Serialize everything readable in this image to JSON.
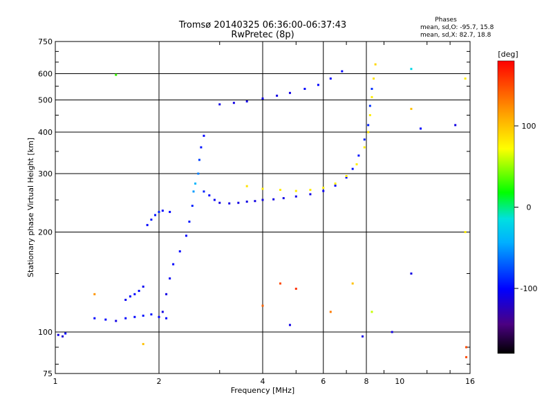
{
  "chart_data": {
    "type": "scatter",
    "title_lines": [
      "Tromsø 20140325 06:36:00-06:37:43",
      "RwPretec (8p)"
    ],
    "stats": {
      "heading": "Phases",
      "line_o": "mean, sd,O: -95.7, 15.8",
      "line_x": "mean, sd,X:  82.7, 18.8"
    },
    "xlabel": "Frequency [MHz]",
    "ylabel": "Stationary phase Virtual Height [km]",
    "x_scale": "log",
    "y_scale": "log",
    "xlim": [
      1,
      16
    ],
    "ylim": [
      75,
      750
    ],
    "x_ticks": [
      1,
      2,
      4,
      6,
      8,
      10,
      16
    ],
    "x_tick_labels": [
      "1",
      "2",
      "4",
      "6",
      "8",
      "10",
      "16"
    ],
    "y_ticks": [
      75,
      100,
      200,
      300,
      400,
      500,
      600,
      750
    ],
    "y_tick_labels": [
      "75",
      "100",
      "200",
      "300",
      "400",
      "500",
      "600",
      "750"
    ],
    "grid": true,
    "grid_x": [
      2,
      4,
      6,
      8
    ],
    "grid_y": [
      100,
      200,
      300,
      400,
      500,
      600
    ],
    "colorbar": {
      "label": "[deg]",
      "range": [
        -180,
        180
      ],
      "ticks": [
        100,
        0,
        -100
      ],
      "tick_labels": [
        "100",
        "0",
        "-100"
      ]
    },
    "series": [
      {
        "points": [
          [
            1.02,
            98,
            -110
          ],
          [
            1.05,
            97,
            -115
          ],
          [
            1.07,
            99,
            -100
          ]
        ]
      },
      {
        "points": [
          [
            1.3,
            110,
            -100
          ],
          [
            1.4,
            109,
            -100
          ],
          [
            1.5,
            108,
            -110
          ],
          [
            1.6,
            110,
            -100
          ],
          [
            1.7,
            111,
            -100
          ],
          [
            1.8,
            112,
            -95
          ],
          [
            1.9,
            113,
            -95
          ],
          [
            2.0,
            111,
            -100
          ],
          [
            2.1,
            110,
            -100
          ]
        ]
      },
      {
        "points": [
          [
            1.6,
            125,
            -105
          ],
          [
            1.65,
            128,
            -100
          ],
          [
            1.7,
            130,
            -100
          ],
          [
            1.75,
            133,
            -100
          ],
          [
            1.8,
            137,
            -105
          ]
        ]
      },
      {
        "points": [
          [
            1.85,
            210,
            -100
          ],
          [
            1.9,
            218,
            -95
          ],
          [
            1.95,
            225,
            -95
          ],
          [
            2.0,
            230,
            -90
          ],
          [
            2.05,
            232,
            -100
          ],
          [
            2.15,
            230,
            -100
          ]
        ]
      },
      {
        "points": [
          [
            2.05,
            115,
            -110
          ],
          [
            2.1,
            130,
            -110
          ],
          [
            2.15,
            145,
            -105
          ],
          [
            2.2,
            160,
            -100
          ],
          [
            2.3,
            175,
            -100
          ],
          [
            2.4,
            195,
            -100
          ],
          [
            2.45,
            215,
            -95
          ],
          [
            2.5,
            240,
            -90
          ],
          [
            2.52,
            265,
            -50
          ],
          [
            2.55,
            280,
            -40
          ],
          [
            2.6,
            300,
            -60
          ],
          [
            2.62,
            330,
            -80
          ],
          [
            2.65,
            360,
            -95
          ],
          [
            2.7,
            390,
            -100
          ]
        ]
      },
      {
        "points": [
          [
            2.7,
            265,
            -90
          ],
          [
            2.8,
            258,
            -100
          ],
          [
            2.9,
            250,
            -105
          ],
          [
            3.0,
            245,
            -110
          ],
          [
            3.2,
            244,
            -110
          ],
          [
            3.4,
            245,
            -110
          ],
          [
            3.6,
            247,
            -110
          ],
          [
            3.8,
            248,
            -110
          ],
          [
            4.0,
            250,
            -110
          ],
          [
            4.3,
            251,
            -110
          ],
          [
            4.6,
            253,
            -110
          ],
          [
            5.0,
            256,
            -110
          ],
          [
            5.5,
            260,
            -110
          ],
          [
            6.0,
            266,
            -105
          ],
          [
            6.5,
            276,
            -100
          ],
          [
            7.0,
            292,
            -100
          ],
          [
            7.3,
            310,
            -95
          ],
          [
            7.6,
            340,
            -95
          ],
          [
            7.9,
            380,
            -90
          ],
          [
            8.1,
            420,
            -90
          ],
          [
            8.2,
            480,
            -85
          ],
          [
            8.3,
            540,
            -85
          ]
        ]
      },
      {
        "points": [
          [
            3.6,
            275,
            85
          ],
          [
            4.0,
            270,
            80
          ],
          [
            4.5,
            268,
            80
          ],
          [
            5.0,
            266,
            80
          ],
          [
            5.5,
            268,
            80
          ],
          [
            6.0,
            272,
            80
          ],
          [
            6.5,
            280,
            80
          ],
          [
            7.0,
            295,
            80
          ],
          [
            7.5,
            320,
            80
          ],
          [
            7.9,
            360,
            80
          ],
          [
            8.1,
            400,
            85
          ],
          [
            8.2,
            450,
            80
          ],
          [
            8.3,
            510,
            80
          ],
          [
            8.4,
            580,
            85
          ],
          [
            8.5,
            640,
            90
          ]
        ]
      },
      {
        "points": [
          [
            3.0,
            485,
            -110
          ],
          [
            3.3,
            490,
            -110
          ],
          [
            3.6,
            495,
            -110
          ],
          [
            4.0,
            505,
            -110
          ],
          [
            4.4,
            515,
            -110
          ],
          [
            4.8,
            525,
            -110
          ],
          [
            5.3,
            540,
            -100
          ],
          [
            5.8,
            555,
            -100
          ],
          [
            6.3,
            580,
            -100
          ],
          [
            6.8,
            610,
            -100
          ]
        ]
      },
      {
        "points": [
          [
            4.0,
            120,
            140
          ],
          [
            4.5,
            140,
            150
          ],
          [
            5.0,
            135,
            160
          ],
          [
            4.8,
            105,
            -110
          ],
          [
            7.8,
            97,
            -110
          ],
          [
            9.5,
            100,
            -110
          ],
          [
            10.8,
            620,
            -20
          ],
          [
            10.8,
            470,
            100
          ],
          [
            10.8,
            150,
            -110
          ],
          [
            11.5,
            410,
            -100
          ],
          [
            14.5,
            420,
            -110
          ],
          [
            15.5,
            580,
            80
          ],
          [
            15.5,
            200,
            80
          ],
          [
            15.6,
            90,
            150
          ],
          [
            15.6,
            84,
            150
          ],
          [
            1.8,
            92,
            100
          ],
          [
            1.5,
            595,
            30
          ],
          [
            1.3,
            130,
            120
          ],
          [
            7.3,
            140,
            100
          ],
          [
            6.3,
            115,
            130
          ],
          [
            8.3,
            115,
            60
          ]
        ]
      }
    ]
  }
}
